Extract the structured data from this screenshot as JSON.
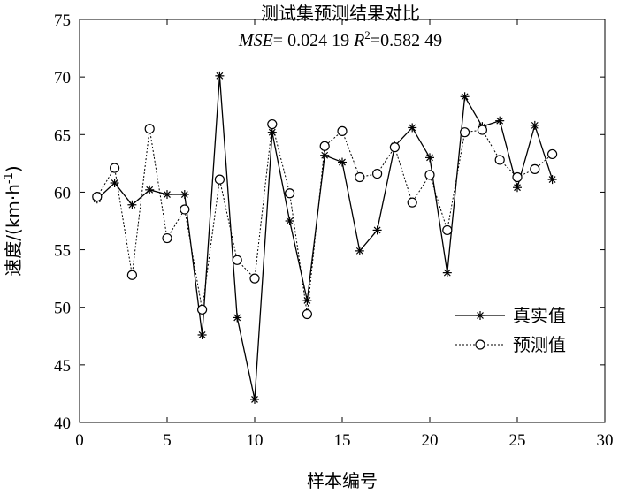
{
  "chart_data": {
    "type": "line",
    "title": "测试集预测结果对比",
    "subtitle": {
      "mse_label": "MSE",
      "mse_value": "= 0.024 19 ",
      "r2_label": "R",
      "r2_sup": "2",
      "r2_value": "=0.582 49"
    },
    "xlabel": "样本编号",
    "ylabel_main": "速度/(km·h",
    "ylabel_sup": "-1",
    "ylabel_close": ")",
    "xlim": [
      0,
      30
    ],
    "ylim": [
      40,
      75
    ],
    "xticks": [
      "0",
      "5",
      "10",
      "15",
      "20",
      "25",
      "30"
    ],
    "yticks": [
      "40",
      "45",
      "50",
      "55",
      "60",
      "65",
      "70",
      "75"
    ],
    "x": [
      1,
      2,
      3,
      4,
      5,
      6,
      7,
      8,
      9,
      10,
      11,
      12,
      13,
      14,
      15,
      16,
      17,
      18,
      19,
      20,
      21,
      22,
      23,
      24,
      25,
      26,
      27
    ],
    "series": [
      {
        "name": "真实值",
        "marker": "star",
        "line": "solid",
        "values": [
          59.4,
          60.8,
          58.9,
          60.2,
          59.8,
          59.8,
          47.6,
          70.1,
          49.1,
          42.0,
          65.2,
          57.5,
          50.6,
          63.2,
          62.6,
          54.9,
          56.7,
          64.0,
          65.6,
          63.0,
          53.0,
          68.3,
          65.7,
          66.2,
          60.4,
          65.8,
          61.1
        ]
      },
      {
        "name": "预测值",
        "marker": "circle",
        "line": "dotted",
        "values": [
          59.6,
          62.1,
          52.8,
          65.5,
          56.0,
          58.5,
          49.8,
          61.1,
          54.1,
          52.5,
          65.9,
          59.9,
          49.4,
          64.0,
          65.3,
          61.3,
          61.6,
          63.9,
          59.1,
          61.5,
          56.7,
          65.2,
          65.4,
          62.8,
          61.3,
          62.0,
          63.3
        ]
      }
    ],
    "legend_position": "lower-right",
    "grid": false
  }
}
